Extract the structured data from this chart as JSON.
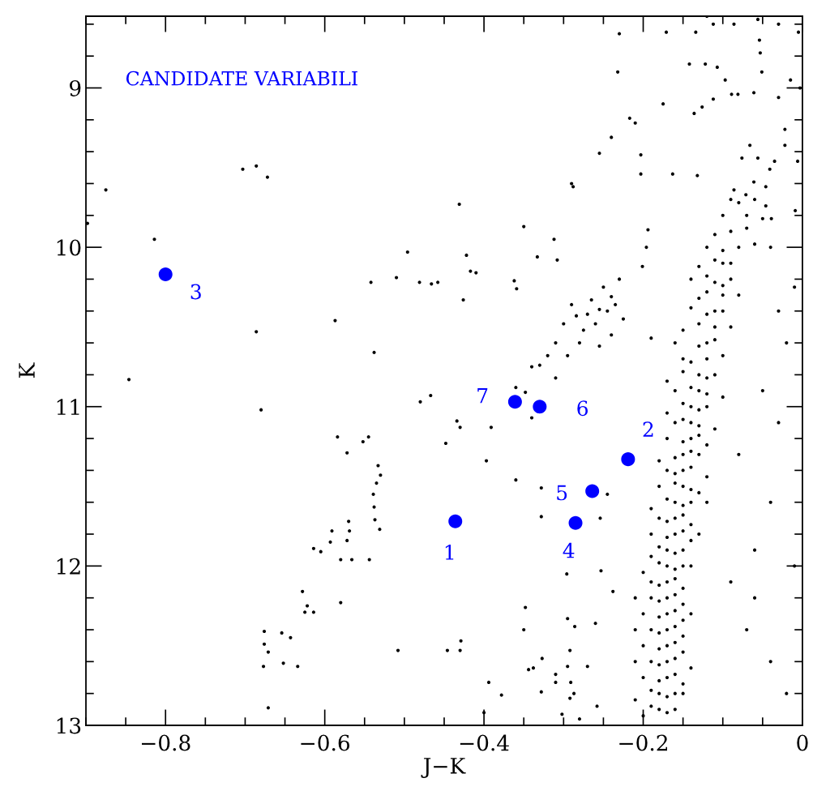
{
  "chart_data": {
    "type": "scatter",
    "xlabel": "J−K",
    "ylabel": "K",
    "xlim": [
      -0.9,
      0
    ],
    "ylim": [
      13,
      8.55
    ],
    "xticks": [
      {
        "value": -0.8,
        "label": "−0.8"
      },
      {
        "value": -0.6,
        "label": "−0.6"
      },
      {
        "value": -0.4,
        "label": "−0.4"
      },
      {
        "value": -0.2,
        "label": "−0.2"
      },
      0
    ],
    "yticks": [
      9,
      10,
      11,
      12,
      13
    ],
    "grid": false,
    "legend": false,
    "series": [
      {
        "color": "#000000",
        "x": [
          -0.898,
          -0.875,
          -0.814,
          -0.846,
          -0.703,
          -0.686,
          -0.672,
          -0.686,
          -0.68,
          -0.587,
          -0.538,
          -0.542,
          -0.51,
          -0.496,
          -0.481,
          -0.466,
          -0.458,
          -0.431,
          -0.422,
          -0.417,
          -0.41,
          -0.426,
          -0.584,
          -0.572,
          -0.552,
          -0.545,
          -0.533,
          -0.53,
          -0.535,
          -0.539,
          -0.538,
          -0.57,
          -0.569,
          -0.572,
          -0.591,
          -0.593,
          -0.605,
          -0.614,
          -0.566,
          -0.544,
          -0.537,
          -0.531,
          -0.58,
          -0.58,
          -0.628,
          -0.622,
          -0.625,
          -0.614,
          -0.676,
          -0.676,
          -0.671,
          -0.654,
          -0.643,
          -0.652,
          -0.677,
          -0.634,
          -0.671,
          -0.508,
          -0.446,
          -0.43,
          -0.429,
          -0.448,
          -0.434,
          -0.43,
          -0.467,
          -0.48,
          -0.391,
          -0.397,
          -0.36,
          -0.394,
          -0.378,
          -0.4,
          -0.348,
          -0.36,
          -0.362,
          -0.359,
          -0.35,
          -0.333,
          -0.312,
          -0.308,
          -0.348,
          -0.34,
          -0.328,
          -0.328,
          -0.34,
          -0.32,
          -0.31,
          -0.3,
          -0.29,
          -0.284,
          -0.275,
          -0.27,
          -0.265,
          -0.26,
          -0.255,
          -0.25,
          -0.245,
          -0.24,
          -0.235,
          -0.23,
          -0.225,
          -0.31,
          -0.33,
          -0.295,
          -0.28,
          -0.255,
          -0.24,
          -0.194,
          -0.196,
          -0.201,
          -0.19,
          -0.24,
          -0.255,
          -0.288,
          -0.29,
          -0.21,
          -0.203,
          -0.296,
          -0.295,
          -0.286,
          -0.292,
          -0.295,
          -0.291,
          -0.302,
          -0.328,
          -0.338,
          -0.344,
          -0.327,
          -0.31,
          -0.31,
          -0.292,
          -0.287,
          -0.245,
          -0.254,
          -0.253,
          -0.238,
          -0.26,
          -0.27,
          -0.258,
          -0.28,
          -0.35,
          -0.12,
          -0.134,
          -0.112,
          -0.086,
          -0.056,
          -0.005,
          -0.03,
          -0.054,
          -0.053,
          -0.051,
          -0.171,
          -0.23,
          -0.232,
          -0.142,
          -0.122,
          -0.107,
          -0.097,
          -0.089,
          -0.081,
          -0.061,
          -0.03,
          -0.015,
          -0.003,
          -0.175,
          -0.126,
          -0.136,
          -0.217,
          -0.112,
          -0.022,
          -0.022,
          -0.006,
          -0.035,
          -0.041,
          -0.066,
          -0.076,
          -0.056,
          -0.046,
          -0.061,
          -0.071,
          -0.086,
          -0.163,
          -0.203,
          -0.132,
          -0.046,
          -0.039,
          -0.009,
          -0.06,
          -0.08,
          -0.09,
          -0.07,
          -0.05,
          -0.1,
          -0.09,
          -0.07,
          -0.11,
          -0.08,
          -0.1,
          -0.12,
          -0.06,
          -0.09,
          -0.11,
          -0.13,
          -0.1,
          -0.09,
          -0.11,
          -0.12,
          -0.14,
          -0.1,
          -0.1,
          -0.12,
          -0.13,
          -0.08,
          -0.11,
          -0.12,
          -0.14,
          -0.1,
          -0.11,
          -0.13,
          -0.15,
          -0.09,
          -0.12,
          -0.13,
          -0.11,
          -0.16,
          -0.12,
          -0.14,
          -0.1,
          -0.15,
          -0.13,
          -0.12,
          -0.15,
          -0.11,
          -0.17,
          -0.13,
          -0.14,
          -0.12,
          -0.16,
          -0.1,
          -0.14,
          -0.13,
          -0.15,
          -0.12,
          -0.17,
          -0.14,
          -0.15,
          -0.13,
          -0.16,
          -0.11,
          -0.14,
          -0.15,
          -0.13,
          -0.17,
          -0.12,
          -0.15,
          -0.14,
          -0.16,
          -0.13,
          -0.18,
          -0.15,
          -0.16,
          -0.14,
          -0.17,
          -0.12,
          -0.15,
          -0.16,
          -0.14,
          -0.18,
          -0.13,
          -0.16,
          -0.15,
          -0.17,
          -0.14,
          -0.19,
          -0.12,
          -0.16,
          -0.17,
          -0.15,
          -0.18,
          -0.14,
          -0.16,
          -0.17,
          -0.15,
          -0.19,
          -0.14,
          -0.13,
          -0.17,
          -0.16,
          -0.18,
          -0.15,
          -0.19,
          -0.17,
          -0.16,
          -0.18,
          -0.15,
          -0.2,
          -0.14,
          -0.17,
          -0.18,
          -0.16,
          -0.19,
          -0.15,
          -0.17,
          -0.18,
          -0.16,
          -0.19,
          -0.15,
          -0.21,
          -0.17,
          -0.18,
          -0.16,
          -0.2,
          -0.15,
          -0.14,
          -0.17,
          -0.18,
          -0.16,
          -0.19,
          -0.15,
          -0.21,
          -0.17,
          -0.18,
          -0.16,
          -0.2,
          -0.15,
          -0.17,
          -0.18,
          -0.16,
          -0.19,
          -0.14,
          -0.21,
          -0.17,
          -0.18,
          -0.16,
          -0.2,
          -0.15,
          -0.18,
          -0.17,
          -0.19,
          -0.16,
          -0.21,
          -0.15,
          -0.18,
          -0.17,
          -0.19,
          -0.16,
          -0.2,
          -0.03,
          -0.02,
          -0.05,
          -0.03,
          -0.08,
          -0.04,
          -0.06,
          -0.01,
          -0.06,
          -0.04,
          -0.02,
          -0.07,
          -0.09,
          -0.01,
          -0.04
        ],
        "values": [
          9.85,
          9.64,
          9.95,
          10.83,
          9.51,
          9.49,
          9.56,
          10.53,
          11.02,
          10.46,
          10.66,
          10.22,
          10.19,
          10.03,
          10.22,
          10.23,
          10.22,
          9.73,
          10.05,
          10.15,
          10.16,
          10.33,
          11.19,
          11.29,
          11.22,
          11.19,
          11.37,
          11.43,
          11.48,
          11.55,
          11.63,
          11.72,
          11.78,
          11.84,
          11.78,
          11.85,
          11.91,
          11.89,
          11.96,
          11.96,
          11.71,
          11.77,
          11.96,
          12.23,
          12.16,
          12.25,
          12.29,
          12.29,
          12.41,
          12.49,
          12.54,
          12.42,
          12.45,
          12.61,
          12.63,
          12.63,
          12.89,
          12.53,
          12.53,
          12.53,
          12.47,
          11.23,
          11.09,
          11.13,
          10.93,
          10.97,
          11.13,
          11.34,
          11.46,
          12.73,
          12.81,
          12.92,
          12.26,
          10.88,
          10.21,
          10.26,
          9.87,
          10.06,
          9.95,
          10.08,
          10.91,
          11.07,
          11.51,
          11.69,
          10.75,
          10.68,
          10.6,
          10.48,
          10.36,
          10.43,
          10.52,
          10.42,
          10.33,
          10.48,
          10.39,
          10.25,
          10.4,
          10.31,
          10.36,
          10.2,
          10.45,
          10.82,
          10.74,
          10.68,
          10.6,
          10.62,
          10.55,
          9.89,
          10.0,
          10.12,
          10.57,
          9.31,
          9.41,
          9.62,
          9.6,
          9.22,
          9.42,
          12.05,
          12.33,
          12.38,
          12.53,
          12.63,
          12.73,
          12.93,
          12.79,
          12.64,
          12.65,
          12.58,
          12.68,
          12.73,
          12.83,
          12.8,
          11.55,
          11.7,
          12.03,
          12.16,
          12.36,
          12.63,
          12.88,
          12.96,
          12.4,
          8.55,
          8.65,
          8.6,
          8.6,
          8.57,
          8.65,
          8.6,
          8.7,
          8.78,
          8.9,
          8.65,
          8.66,
          8.9,
          8.85,
          8.85,
          8.87,
          8.95,
          9.04,
          9.04,
          9.03,
          9.06,
          8.95,
          9.0,
          9.1,
          9.12,
          9.16,
          9.19,
          9.07,
          9.26,
          9.36,
          9.46,
          9.46,
          9.51,
          9.36,
          9.44,
          9.44,
          9.62,
          9.59,
          9.67,
          9.64,
          9.54,
          9.54,
          9.55,
          9.74,
          9.82,
          9.77,
          9.7,
          9.72,
          9.7,
          9.8,
          9.82,
          9.8,
          9.9,
          9.88,
          9.92,
          10.0,
          10.02,
          10.0,
          9.98,
          10.1,
          10.08,
          10.12,
          10.1,
          10.2,
          10.22,
          10.18,
          10.2,
          10.24,
          10.3,
          10.28,
          10.32,
          10.3,
          10.4,
          10.42,
          10.38,
          10.4,
          10.5,
          10.48,
          10.52,
          10.5,
          10.6,
          10.62,
          10.58,
          10.6,
          10.7,
          10.72,
          10.68,
          10.7,
          10.8,
          10.82,
          10.78,
          10.8,
          10.84,
          10.9,
          10.88,
          10.92,
          10.9,
          10.94,
          11.0,
          11.02,
          10.98,
          11.0,
          11.04,
          11.1,
          11.08,
          11.12,
          11.1,
          11.14,
          11.2,
          11.22,
          11.18,
          11.2,
          11.24,
          11.3,
          11.28,
          11.32,
          11.3,
          11.34,
          11.4,
          11.42,
          11.38,
          11.4,
          11.44,
          11.5,
          11.48,
          11.52,
          11.5,
          11.54,
          11.6,
          11.62,
          11.58,
          11.6,
          11.64,
          11.6,
          11.7,
          11.72,
          11.68,
          11.7,
          11.74,
          11.8,
          11.82,
          11.78,
          11.8,
          11.84,
          11.8,
          11.9,
          11.92,
          11.88,
          11.9,
          11.94,
          12.0,
          12.02,
          11.98,
          12.0,
          12.04,
          12.0,
          12.1,
          12.12,
          12.08,
          12.1,
          12.14,
          12.2,
          12.22,
          12.18,
          12.2,
          12.24,
          12.2,
          12.3,
          12.32,
          12.28,
          12.3,
          12.34,
          12.3,
          12.4,
          12.42,
          12.38,
          12.4,
          12.44,
          12.4,
          12.5,
          12.52,
          12.48,
          12.5,
          12.54,
          12.6,
          12.62,
          12.58,
          12.6,
          12.64,
          12.6,
          12.7,
          12.72,
          12.68,
          12.7,
          12.74,
          12.8,
          12.82,
          12.78,
          12.8,
          12.84,
          12.8,
          12.9,
          12.92,
          12.88,
          12.9,
          12.94,
          10.4,
          10.6,
          10.9,
          11.1,
          11.3,
          11.6,
          11.9,
          12.0,
          12.2,
          12.6,
          12.8,
          12.4,
          12.1,
          10.25,
          10.0
        ]
      },
      {
        "color": "#0000ff",
        "x": [
          -0.436,
          -0.219,
          -0.8,
          -0.285,
          -0.264,
          -0.33,
          -0.361
        ],
        "values": [
          11.72,
          11.33,
          10.17,
          11.73,
          11.53,
          11.0,
          10.97
        ]
      }
    ],
    "annotations": [
      "CANDIDATE VARIABILI",
      {
        "text": "1",
        "x": -0.436,
        "y": 11.72
      },
      {
        "text": "2",
        "x": -0.219,
        "y": 11.33
      },
      {
        "text": "3",
        "x": -0.8,
        "y": 10.17
      },
      {
        "text": "4",
        "x": -0.285,
        "y": 11.73
      },
      {
        "text": "5",
        "x": -0.264,
        "y": 11.53
      },
      {
        "text": "6",
        "x": -0.33,
        "y": 11.0
      },
      {
        "text": "7",
        "x": -0.361,
        "y": 10.97
      }
    ]
  }
}
